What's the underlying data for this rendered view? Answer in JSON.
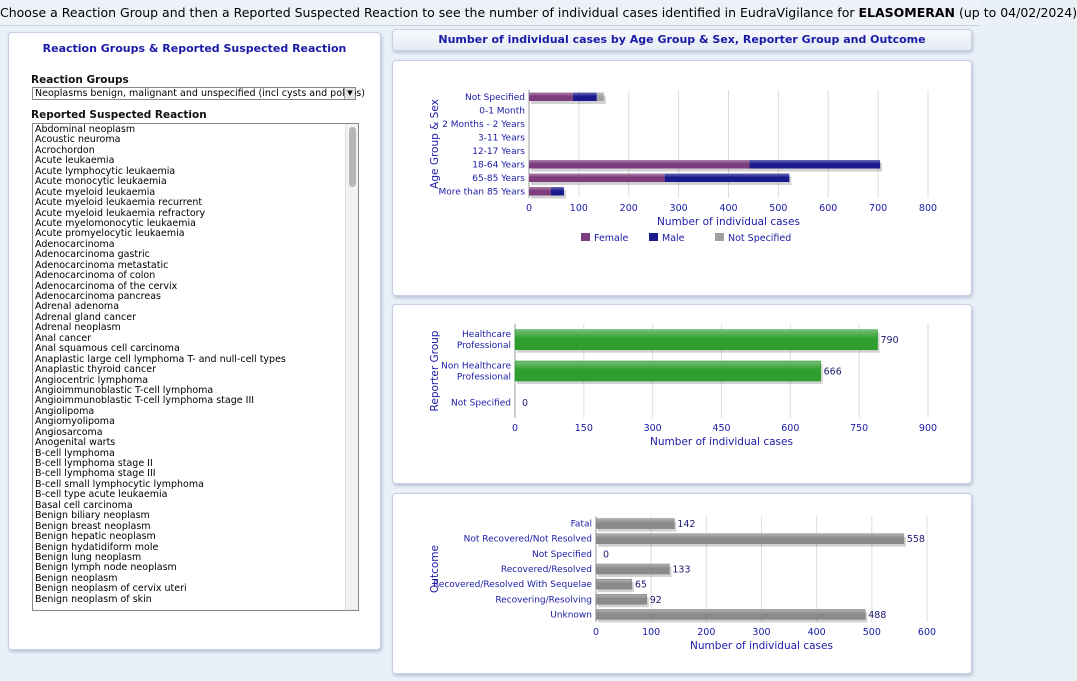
{
  "header": {
    "text_before": "Choose a Reaction Group and then a Reported Suspected Reaction to see the number of individual cases identified in EudraVigilance for ",
    "product": "ELASOMERAN",
    "text_after": " (up to 04/02/2024)"
  },
  "left_panel": {
    "title": "Reaction Groups & Reported Suspected Reaction",
    "groups_label": "Reaction Groups",
    "selected_group": "Neoplasms benign, malignant and unspecified (incl cysts and polyps)",
    "reactions_label": "Reported Suspected Reaction",
    "reactions": [
      "Abdominal neoplasm",
      "Acoustic neuroma",
      "Acrochordon",
      "Acute leukaemia",
      "Acute lymphocytic leukaemia",
      "Acute monocytic leukaemia",
      "Acute myeloid leukaemia",
      "Acute myeloid leukaemia recurrent",
      "Acute myeloid leukaemia refractory",
      "Acute myelomonocytic leukaemia",
      "Acute promyelocytic leukaemia",
      "Adenocarcinoma",
      "Adenocarcinoma gastric",
      "Adenocarcinoma metastatic",
      "Adenocarcinoma of colon",
      "Adenocarcinoma of the cervix",
      "Adenocarcinoma pancreas",
      "Adrenal adenoma",
      "Adrenal gland cancer",
      "Adrenal neoplasm",
      "Anal cancer",
      "Anal squamous cell carcinoma",
      "Anaplastic large cell lymphoma T- and null-cell types",
      "Anaplastic thyroid cancer",
      "Angiocentric lymphoma",
      "Angioimmunoblastic T-cell lymphoma",
      "Angioimmunoblastic T-cell lymphoma stage III",
      "Angiolipoma",
      "Angiomyolipoma",
      "Angiosarcoma",
      "Anogenital warts",
      "B-cell lymphoma",
      "B-cell lymphoma stage II",
      "B-cell lymphoma stage III",
      "B-cell small lymphocytic lymphoma",
      "B-cell type acute leukaemia",
      "Basal cell carcinoma",
      "Benign biliary neoplasm",
      "Benign breast neoplasm",
      "Benign hepatic neoplasm",
      "Benign hydatidiform mole",
      "Benign lung neoplasm",
      "Benign lymph node neoplasm",
      "Benign neoplasm",
      "Benign neoplasm of cervix uteri",
      "Benign neoplasm of skin"
    ]
  },
  "right_header": {
    "title": "Number of individual cases by Age Group & Sex, Reporter Group and Outcome"
  },
  "chart_data": [
    {
      "type": "bar",
      "orientation": "horizontal",
      "stacked": true,
      "ylabel": "Age Group & Sex",
      "xlabel": "Number of individual cases",
      "categories": [
        "Not Specified",
        "0-1 Month",
        "2 Months - 2 Years",
        "3-11 Years",
        "12-17 Years",
        "18-64 Years",
        "65-85 Years",
        "More than 85 Years"
      ],
      "series": [
        {
          "name": "Female",
          "color": "#7d3c7d",
          "values": [
            88,
            0,
            0,
            0,
            0,
            442,
            272,
            44
          ]
        },
        {
          "name": "Male",
          "color": "#1a1a8c",
          "values": [
            48,
            0,
            0,
            0,
            0,
            262,
            250,
            26
          ]
        },
        {
          "name": "Not Specified",
          "color": "#a0a0a0",
          "values": [
            14,
            0,
            0,
            0,
            0,
            0,
            0,
            0
          ]
        }
      ],
      "xlim": [
        0,
        800
      ],
      "xticks": [
        0,
        100,
        200,
        300,
        400,
        500,
        600,
        700,
        800
      ],
      "legend": "bottom",
      "grid": true
    },
    {
      "type": "bar",
      "orientation": "horizontal",
      "ylabel": "Reporter Group",
      "xlabel": "Number of individual cases",
      "categories": [
        "Healthcare Professional",
        "Non Healthcare Professional",
        "Not Specified"
      ],
      "values": [
        790,
        666,
        0
      ],
      "color": "#2e9e2e",
      "xlim": [
        0,
        900
      ],
      "xticks": [
        0,
        150,
        300,
        450,
        600,
        750,
        900
      ],
      "data_labels": true,
      "grid": true
    },
    {
      "type": "bar",
      "orientation": "horizontal",
      "ylabel": "Outcome",
      "xlabel": "Number of individual cases",
      "categories": [
        "Fatal",
        "Not Recovered/Not Resolved",
        "Not Specified",
        "Recovered/Resolved",
        "Recovered/Resolved With Sequelae",
        "Recovering/Resolving",
        "Unknown"
      ],
      "values": [
        142,
        558,
        0,
        133,
        65,
        92,
        488
      ],
      "color": "#8a8a8a",
      "xlim": [
        0,
        600
      ],
      "xticks": [
        0,
        100,
        200,
        300,
        400,
        500,
        600
      ],
      "data_labels": true,
      "grid": true
    }
  ]
}
